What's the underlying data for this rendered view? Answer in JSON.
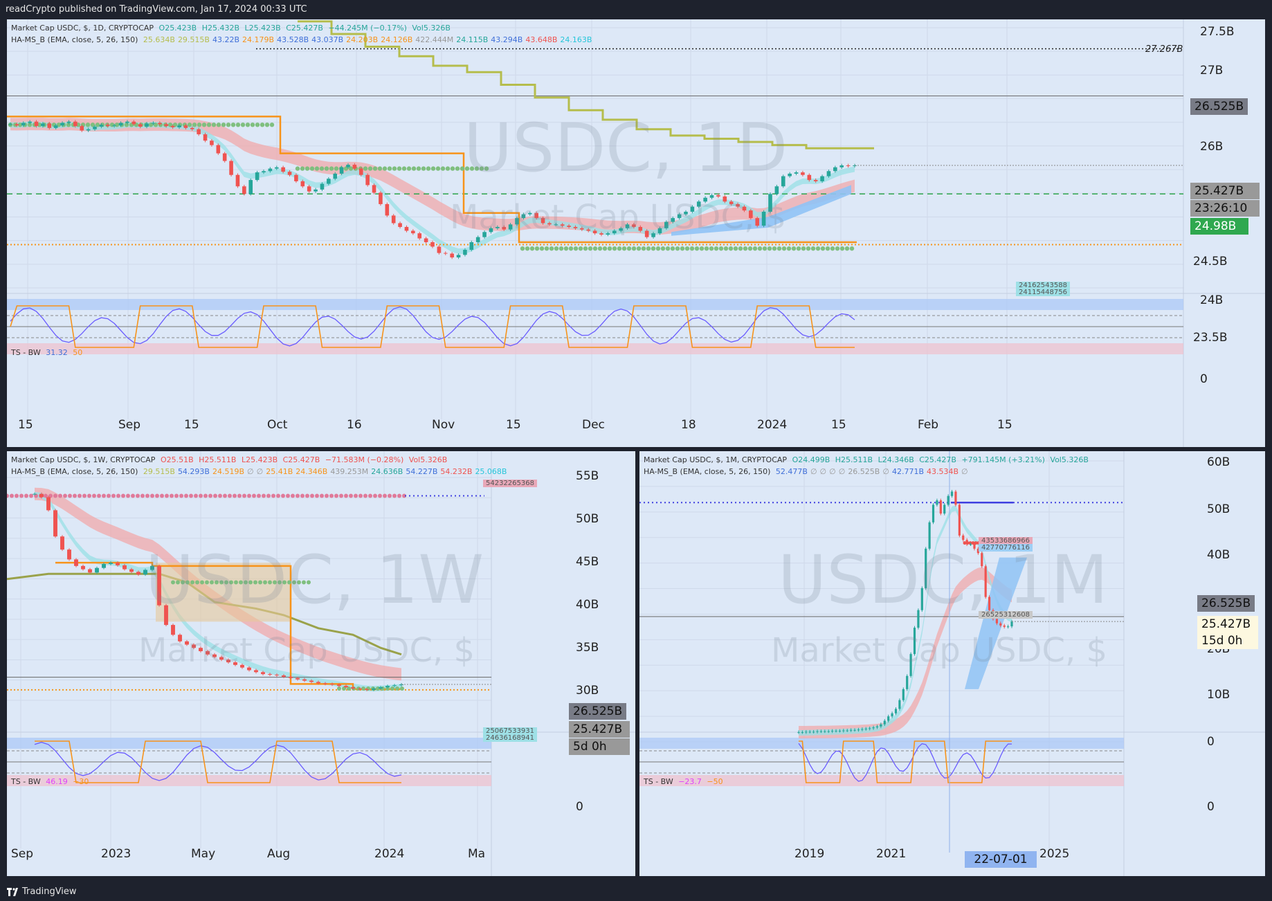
{
  "header": {
    "text": "readCrypto published on TradingView.com, Jan 17, 2024 00:33 UTC"
  },
  "footer": {
    "text": "TradingView",
    "logo_icon": "tradingview-logo-icon"
  },
  "colors": {
    "panel_bg": "#dde8f7",
    "frame": "#1e222d",
    "up": "#26a69a",
    "down": "#ef5350",
    "orange": "#f7931a",
    "olive": "#b5bd4c",
    "green_dots": "#7fbf7f",
    "blue_band": "#90c3f5",
    "pink_band": "#f2a5a5",
    "cyan_band": "#9ee0e6",
    "magenta": "#e040fb",
    "blue_line": "#3f6fd8"
  },
  "chart_data": [
    {
      "id": "daily",
      "type": "candlestick",
      "legend": {
        "line1": {
          "symbol": "Market Cap USDC, $, 1D, CRYPTOCAP",
          "o": "O25.423B",
          "h": "H25.432B",
          "l": "L25.423B",
          "c": "C25.427B",
          "chg": "−44.245M (−0.17%)",
          "vol": "Vol5.326B"
        },
        "line2": {
          "name": "HA-MS_B (EMA, close, 5, 26, 150)",
          "vals": [
            "25.634B",
            "29.515B",
            "43.22B",
            "24.179B",
            "43.528B",
            "43.037B",
            "24.203B",
            "24.126B",
            "422.444M",
            "24.115B",
            "43.294B",
            "43.648B",
            "24.163B"
          ],
          "cols": [
            "#b5bd4c",
            "#b5bd4c",
            "#3f6fd8",
            "#f7931a",
            "#3f6fd8",
            "#3f6fd8",
            "#f7931a",
            "#f7931a",
            "#999999",
            "#26a69a",
            "#3f6fd8",
            "#ef5350",
            "#26c6da"
          ]
        }
      },
      "watermark": {
        "title": "USDC, 1D",
        "subtitle": "Market Cap USDC, $"
      },
      "y_ticks": [
        "27.5B",
        "27B",
        "26B",
        "24.5B",
        "24B",
        "23.5B"
      ],
      "y_range": [
        23.5,
        27.6
      ],
      "x_ticks": [
        "15",
        "Sep",
        "15",
        "Oct",
        "16",
        "Nov",
        "15",
        "Dec",
        "18",
        "2024",
        "15",
        "Feb",
        "15"
      ],
      "badges": {
        "hline": "26.525B",
        "last": "25.427B",
        "countdown": "23:26:10",
        "green": "24.98B",
        "max_label": "27.267B",
        "pair": [
          "24162543588",
          "24115448756"
        ]
      },
      "levels": {
        "hline": 26.525,
        "green": 24.98,
        "max": 27.267,
        "support": 24.16
      },
      "close": [
        26.08,
        26.06,
        26.1,
        26.12,
        26.05,
        26.09,
        26.02,
        26.06,
        26.1,
        26.12,
        26.05,
        25.98,
        26.0,
        26.04,
        26.07,
        26.05,
        26.06,
        26.1,
        26.12,
        26.08,
        26.04,
        26.09,
        26.1,
        26.08,
        26.05,
        26.03,
        26.06,
        26.02,
        26.0,
        25.92,
        25.82,
        25.75,
        25.62,
        25.5,
        25.28,
        25.1,
        24.98,
        25.2,
        25.32,
        25.34,
        25.38,
        25.4,
        25.33,
        25.28,
        25.18,
        25.1,
        25.02,
        25.05,
        25.14,
        25.22,
        25.3,
        25.4,
        25.44,
        25.38,
        25.28,
        25.12,
        25.0,
        24.82,
        24.64,
        24.52,
        24.46,
        24.4,
        24.36,
        24.28,
        24.22,
        24.15,
        24.05,
        24.04,
        23.98,
        24.02,
        24.1,
        24.22,
        24.3,
        24.38,
        24.44,
        24.46,
        24.42,
        24.5,
        24.6,
        24.66,
        24.68,
        24.6,
        24.52,
        24.5,
        24.5,
        24.48,
        24.46,
        24.44,
        24.42,
        24.4,
        24.36,
        24.34,
        24.36,
        24.4,
        24.44,
        24.5,
        24.46,
        24.4,
        24.3,
        24.36,
        24.44,
        24.54,
        24.6,
        24.66,
        24.7,
        24.78,
        24.86,
        24.92,
        24.96,
        24.94,
        24.86,
        24.82,
        24.78,
        24.72,
        24.6,
        24.48,
        24.7,
        24.98,
        25.1,
        25.26,
        25.3,
        25.32,
        25.28,
        25.2,
        25.18,
        25.26,
        25.34,
        25.4,
        25.43,
        25.42,
        25.43
      ]
    },
    {
      "id": "weekly",
      "type": "candlestick",
      "legend": {
        "line1": {
          "symbol": "Market Cap USDC, $, 1W, CRYPTOCAP",
          "o": "O25.51B",
          "h": "H25.511B",
          "l": "L25.423B",
          "c": "C25.427B",
          "chg": "−71.583M (−0.28%)",
          "vol": "Vol5.326B"
        },
        "line2": {
          "name": "HA-MS_B (EMA, close, 5, 26, 150)",
          "vals": [
            "29.515B",
            "54.293B",
            "24.519B",
            "∅",
            "∅",
            "25.41B",
            "24.346B",
            "439.253M",
            "24.636B",
            "54.227B",
            "54.232B",
            "25.068B"
          ],
          "cols": [
            "#b5bd4c",
            "#3f6fd8",
            "#f7931a",
            "#999999",
            "#999999",
            "#f7931a",
            "#f7931a",
            "#999999",
            "#26a69a",
            "#3f6fd8",
            "#ef5350",
            "#26c6da"
          ]
        }
      },
      "watermark": {
        "title": "USDC, 1W",
        "subtitle": "Market Cap USDC, $"
      },
      "y_ticks": [
        "55B",
        "50B",
        "45B",
        "40B",
        "35B",
        "30B"
      ],
      "y_range": [
        23,
        57
      ],
      "x_ticks": [
        "Sep",
        "2023",
        "May",
        "Aug",
        "2024",
        "Ma"
      ],
      "badges": {
        "hline": "26.525B",
        "last": "25.427B",
        "countdown": "5d 0h",
        "pair": [
          "25067533931",
          "24636168941"
        ],
        "top_pair": "54232265368"
      },
      "close": [
        54.5,
        54.0,
        52.0,
        48.0,
        46.0,
        44.5,
        43.5,
        43.0,
        42.5,
        43.2,
        43.8,
        44.0,
        43.6,
        43.0,
        42.6,
        42.2,
        42.9,
        43.5,
        37.5,
        34.5,
        33.0,
        32.0,
        31.5,
        31.0,
        30.5,
        30.0,
        29.6,
        29.2,
        28.8,
        28.4,
        28.0,
        27.6,
        27.3,
        27.0,
        26.9,
        26.8,
        26.6,
        26.4,
        26.2,
        26.0,
        25.8,
        25.6,
        25.5,
        25.4,
        25.2,
        25.0,
        24.8,
        24.7,
        24.6,
        24.8,
        25.0,
        25.2,
        25.3,
        25.43
      ]
    },
    {
      "id": "monthly",
      "type": "candlestick",
      "legend": {
        "line1": {
          "symbol": "Market Cap USDC, $, 1M, CRYPTOCAP",
          "o": "O24.499B",
          "h": "H25.511B",
          "l": "L24.346B",
          "c": "C25.427B",
          "chg": "+791.145M (+3.21%)",
          "vol": "Vol5.326B"
        },
        "line2": {
          "name": "HA-MS_B (EMA, close, 5, 26, 150)",
          "vals": [
            "52.477B",
            "∅",
            "∅",
            "∅",
            "∅",
            "26.525B",
            "∅",
            "42.771B",
            "43.534B",
            "∅"
          ],
          "cols": [
            "#3f6fd8",
            "#999999",
            "#999999",
            "#999999",
            "#999999",
            "#999999",
            "#999999",
            "#3f6fd8",
            "#ef5350",
            "#999999"
          ]
        }
      },
      "watermark": {
        "title": "USDC, 1M",
        "subtitle": "Market Cap USDC, $"
      },
      "y_ticks": [
        "60B",
        "50B",
        "40B",
        "20B",
        "10B",
        "0"
      ],
      "y_range": [
        -2,
        62
      ],
      "x_ticks": [
        "2019",
        "2021",
        "2025"
      ],
      "x_highlight": "22-07-01",
      "badges": {
        "hline": "26.525B",
        "last": "25.427B",
        "countdown": "15d 0h",
        "pair": [
          "43533686966",
          "42770776116"
        ],
        "mid": "26525312608"
      },
      "close": [
        0.2,
        0.2,
        0.3,
        0.3,
        0.3,
        0.4,
        0.4,
        0.4,
        0.4,
        0.5,
        0.5,
        0.5,
        0.6,
        0.6,
        0.7,
        0.7,
        0.8,
        0.9,
        1.0,
        1.1,
        1.3,
        1.5,
        2.0,
        2.8,
        3.8,
        4.5,
        5.5,
        7.5,
        10,
        13,
        18,
        24,
        28,
        33,
        42,
        48,
        52,
        53,
        50,
        52,
        54,
        55,
        52,
        45,
        44,
        43,
        43,
        42,
        41,
        38,
        31,
        28,
        26,
        25,
        24.5,
        24.2,
        24.3,
        25.4
      ]
    }
  ],
  "oscillators": [
    {
      "id": "daily",
      "label": "TS - BW",
      "v1": "31.32",
      "v2": "50",
      "zero": "0"
    },
    {
      "id": "weekly",
      "label": "TS - BW",
      "v1": "46.19",
      "v2": "−30",
      "zero": "0"
    },
    {
      "id": "monthly",
      "label": "TS - BW",
      "v1": "−23.7",
      "v2": "−50",
      "zero": "0"
    }
  ]
}
